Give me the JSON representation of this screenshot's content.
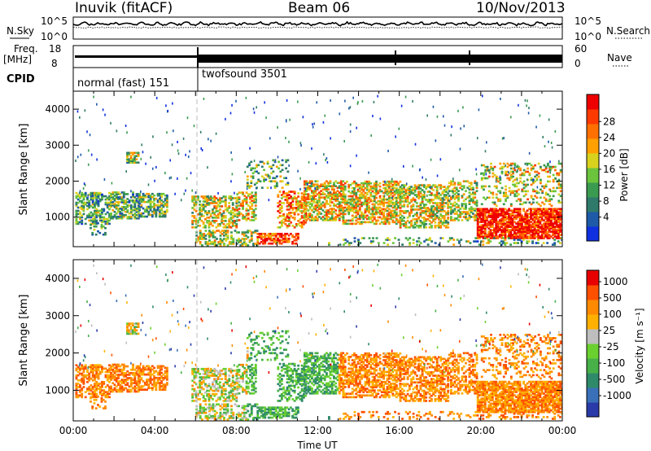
{
  "header": {
    "station": "Inuvik (fitACF)",
    "beam": "Beam 06",
    "date": "10/Nov/2013"
  },
  "strip": {
    "nsky_label": "N.Sky",
    "nsky_ticks": [
      "10^5",
      "10^0"
    ],
    "nsearch_label": "N.Search",
    "nsearch_ticks": [
      "10^5",
      "10^0"
    ],
    "freq_label": "Freq.",
    "freq_unit": "[MHz]",
    "freq_ticks": [
      "18",
      "8"
    ],
    "nave_label": "Nave",
    "nave_ticks": [
      "60",
      "0"
    ],
    "cpid_label": "CPID",
    "cpid_modes": [
      {
        "name": "normal (fast) 151",
        "start_hour": 0,
        "end_hour": 6
      },
      {
        "name": "twofsound 3501",
        "start_hour": 6,
        "end_hour": 24
      }
    ]
  },
  "chart_data": [
    {
      "type": "heatmap",
      "title": "",
      "ylabel": "Slant Range [km]",
      "xlabel": "",
      "ylim": [
        180,
        4500
      ],
      "yticks": [
        1000,
        2000,
        3000,
        4000
      ],
      "xlim": [
        0,
        24
      ],
      "colorbar": {
        "label": "Power [dB]",
        "ticks": [
          "4",
          "8",
          "12",
          "16",
          "20",
          "24",
          "28"
        ],
        "colors": [
          "#1030e0",
          "#1e5aa8",
          "#2f7a6a",
          "#3a9a50",
          "#6bc43c",
          "#d8d21e",
          "#ffa000",
          "#ff7000",
          "#ff3a00",
          "#ee0000"
        ]
      }
    },
    {
      "type": "heatmap",
      "title": "",
      "ylabel": "Slant Range [km]",
      "xlabel": "Time UT",
      "ylim": [
        180,
        4500
      ],
      "yticks": [
        1000,
        2000,
        3000,
        4000
      ],
      "xlim": [
        0,
        24
      ],
      "xticks": [
        "00:00",
        "04:00",
        "08:00",
        "12:00",
        "16:00",
        "20:00",
        "00:00"
      ],
      "colorbar": {
        "label": "Velocity [m s⁻¹]",
        "ticks": [
          "1000",
          "500",
          "100",
          "25",
          "-25",
          "-100",
          "-500",
          "-1000"
        ],
        "colors": [
          "#2a3aa8",
          "#3a70b8",
          "#2f8a6a",
          "#48b048",
          "#6ad030",
          "#bebebe",
          "#ffb000",
          "#ff8a00",
          "#ff5000",
          "#e80000"
        ]
      }
    }
  ]
}
